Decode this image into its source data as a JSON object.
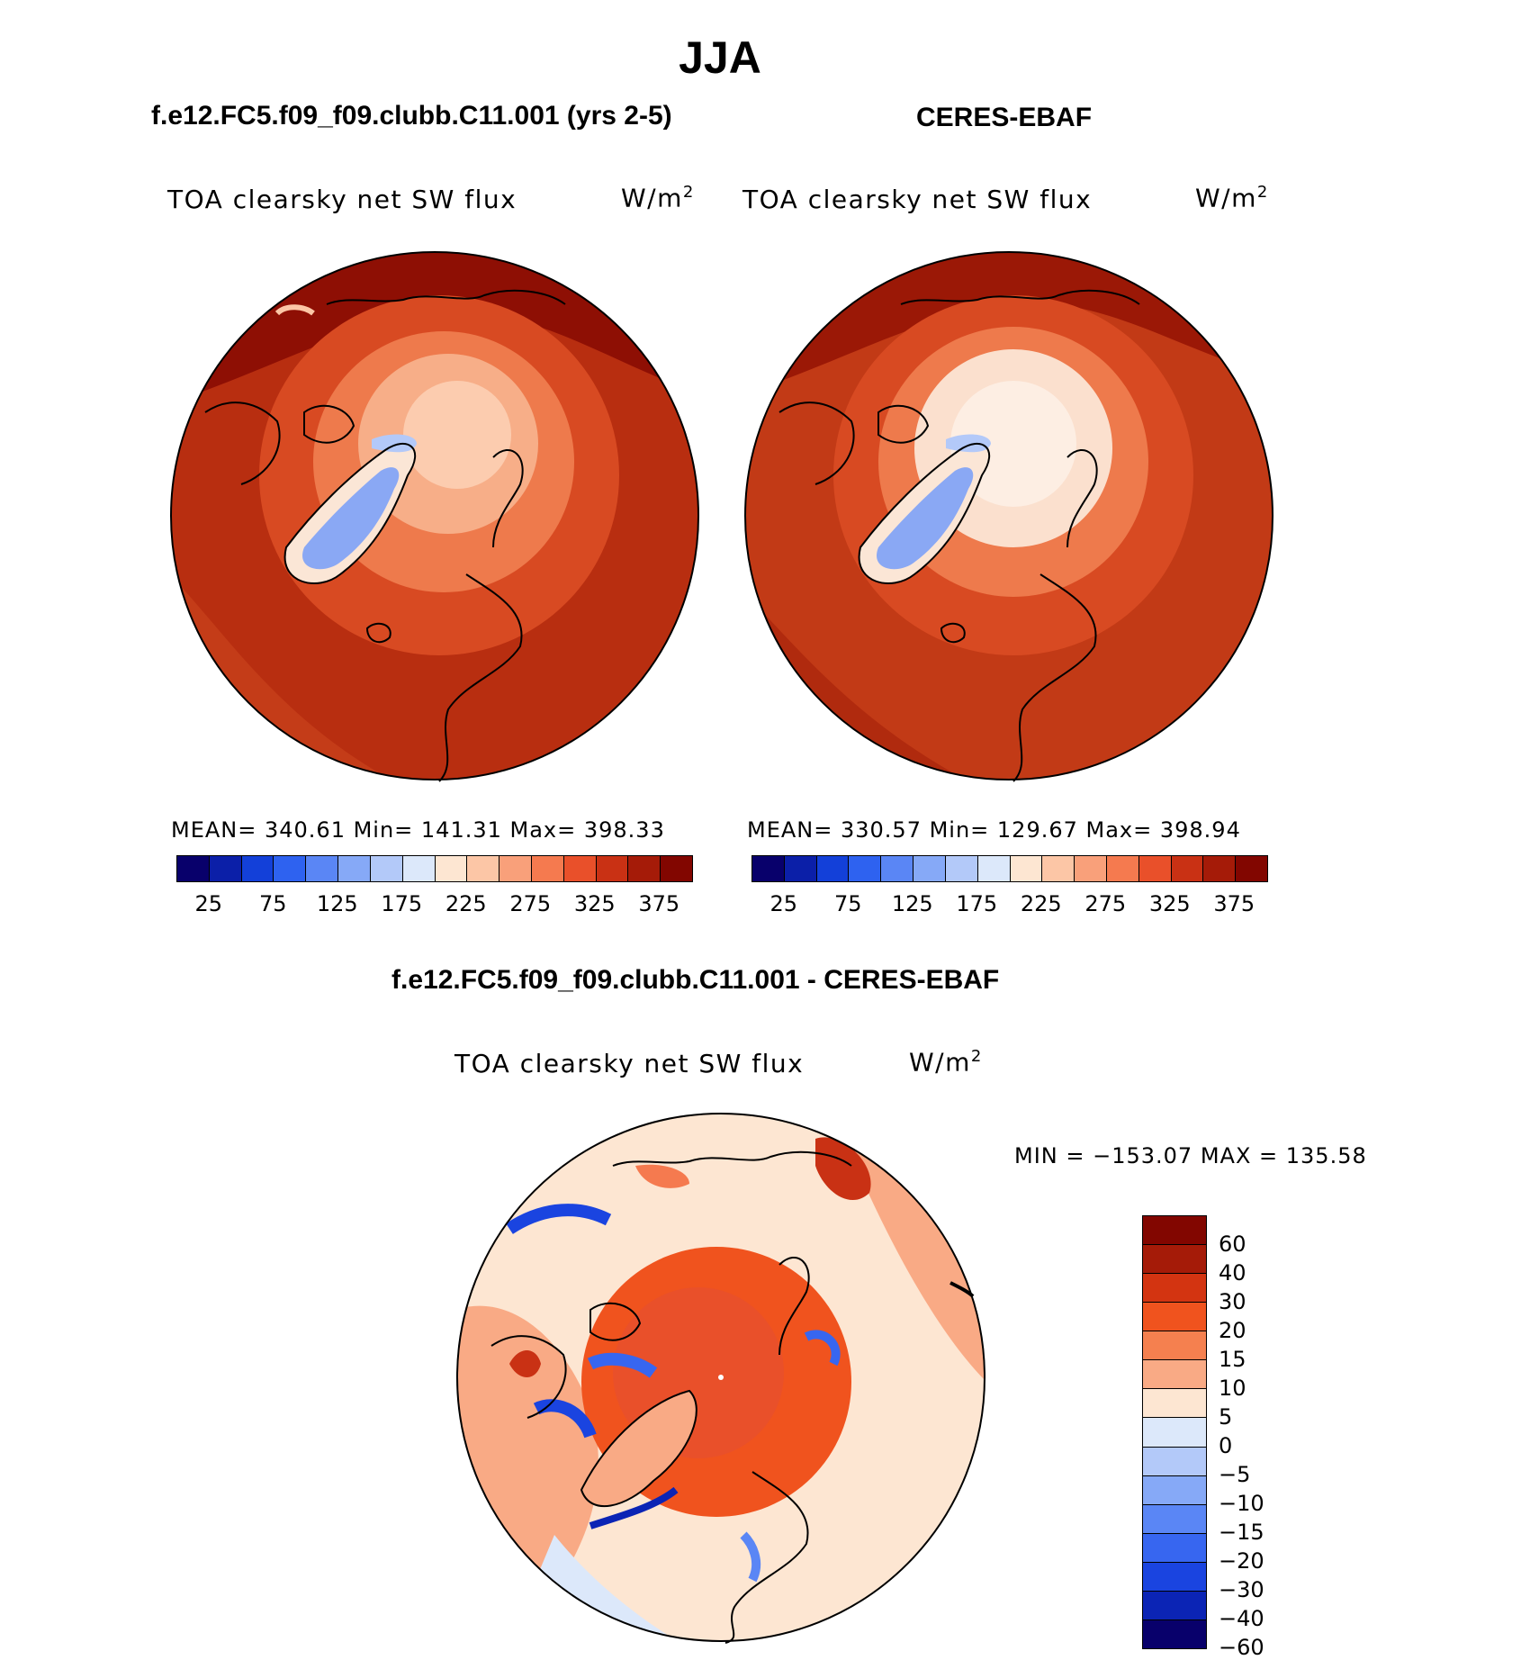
{
  "title": "JJA",
  "panels": [
    {
      "case": "f.e12.FC5.f09_f09.clubb.C11.001 (yrs 2-5)",
      "variable": "TOA clearsky net SW flux",
      "units": "W/m",
      "units_exp": "2",
      "stats": "MEAN= 340.61   Min= 141.31   Max= 398.33"
    },
    {
      "case": "CERES-EBAF",
      "variable": "TOA clearsky net SW flux",
      "units": "W/m",
      "units_exp": "2",
      "stats": "MEAN= 330.57   Min= 129.67   Max= 398.94"
    }
  ],
  "diff": {
    "title": "f.e12.FC5.f09_f09.clubb.C11.001 - CERES-EBAF",
    "variable": "TOA clearsky net SW flux",
    "units": "W/m",
    "units_exp": "2",
    "minmax": "MIN = −153.07 MAX = 135.58"
  },
  "colorbar_abs": {
    "colors": [
      "#08006b",
      "#0b1fa8",
      "#1340d9",
      "#2e62f0",
      "#5a86f5",
      "#86a9f7",
      "#b3c9f9",
      "#dce8fa",
      "#fde6d2",
      "#fcc6a6",
      "#f9a07a",
      "#f57a4f",
      "#e9502a",
      "#c93114",
      "#a51b08",
      "#820600"
    ],
    "labels": [
      "25",
      "75",
      "125",
      "175",
      "225",
      "275",
      "325",
      "375"
    ]
  },
  "colorbar_diff": {
    "colors": [
      "#820600",
      "#a51b08",
      "#d33411",
      "#f0531e",
      "#f5804f",
      "#f9aa85",
      "#fde6d2",
      "#dce8fa",
      "#b3c9f9",
      "#86a9f7",
      "#5a86f5",
      "#3766f0",
      "#1a44e0",
      "#0b24b5",
      "#08006b"
    ],
    "labels": [
      "60",
      "40",
      "30",
      "20",
      "15",
      "10",
      "5",
      "0",
      "−5",
      "−10",
      "−15",
      "−20",
      "−30",
      "−40",
      "−60"
    ]
  }
}
